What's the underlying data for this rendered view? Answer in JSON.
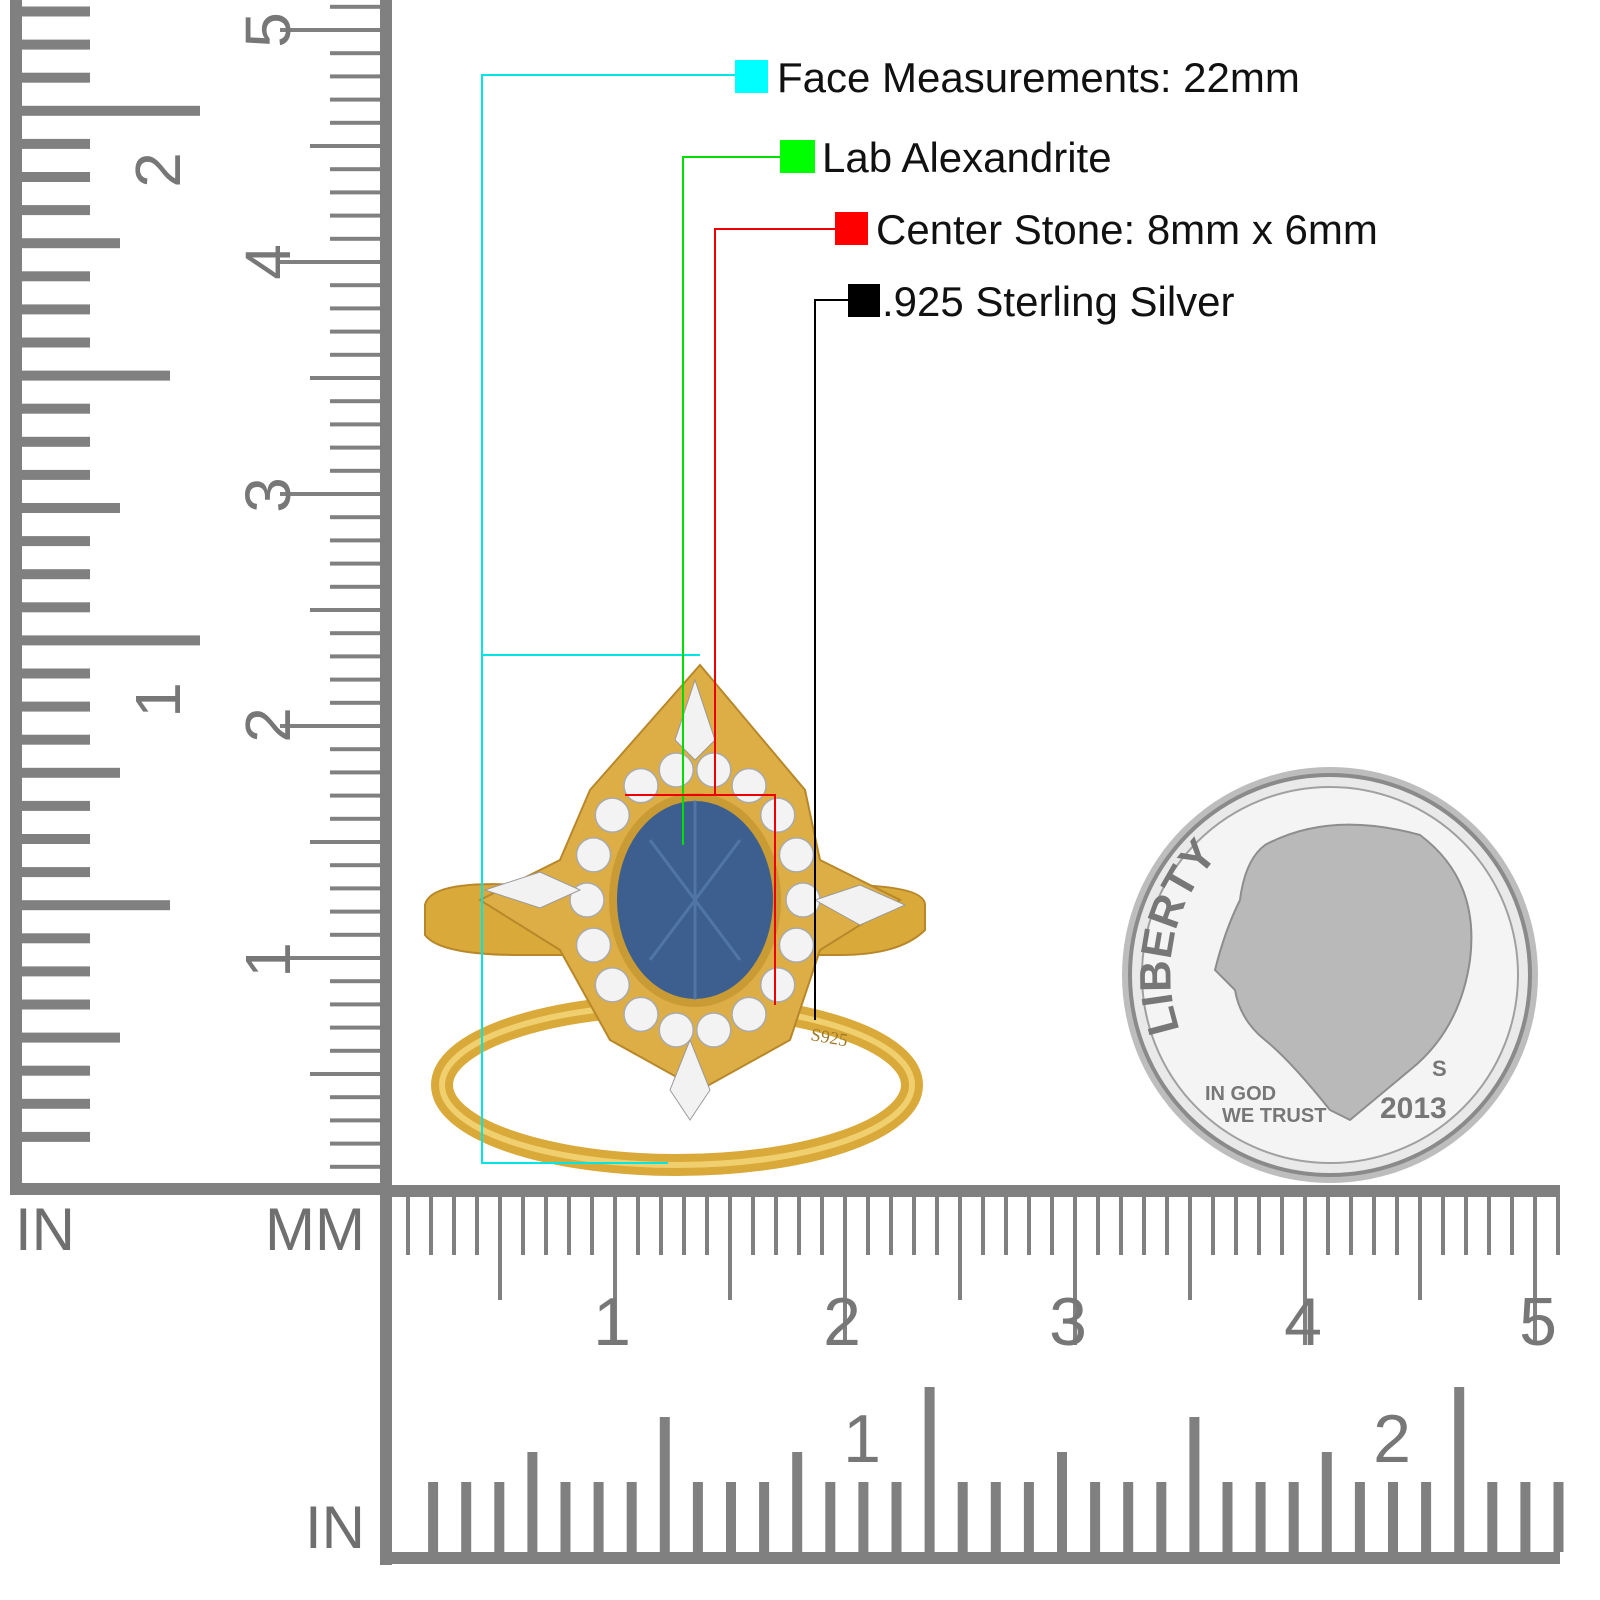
{
  "callouts": [
    {
      "text": "Face Measurements: 22mm",
      "color": "#00ffff"
    },
    {
      "text": "Lab Alexandrite",
      "color": "#00ff00"
    },
    {
      "text": "Center Stone: 8mm x 6mm",
      "color": "#ff0000"
    },
    {
      "text": ".925 Sterling Silver",
      "color": "#000000"
    }
  ],
  "ruler": {
    "left_unit_in": "IN",
    "left_unit_mm": "MM",
    "bottom_unit_in": "IN",
    "left_in_labels": [
      "1",
      "2"
    ],
    "left_cm_labels": [
      "1",
      "2",
      "3",
      "4",
      "5"
    ],
    "bottom_cm_labels": [
      "1",
      "2",
      "3",
      "4",
      "5"
    ],
    "bottom_in_labels": [
      "1",
      "2"
    ],
    "color": "#808080"
  },
  "ring": {
    "engraving": "S925",
    "metal_color": "#d9a93a",
    "stone_color": "#3d5f8f"
  },
  "coin": {
    "liberty": "LIBERTY",
    "motto_1": "IN GOD",
    "motto_2": "WE TRUST",
    "year": "2013",
    "mint": "S"
  }
}
